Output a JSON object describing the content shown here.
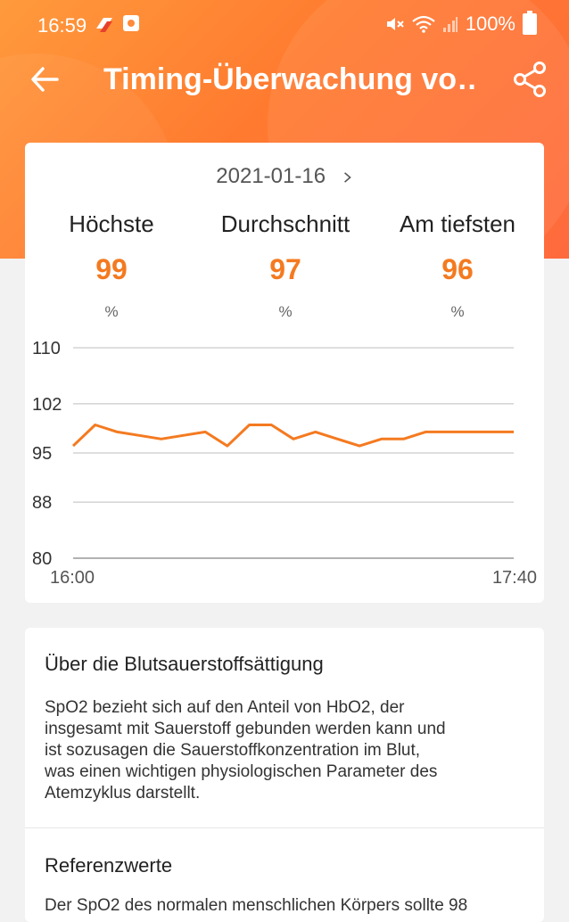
{
  "status_bar": {
    "time": "16:59",
    "battery": "100%",
    "icons": [
      "app-logo-icon",
      "app-notification-icon",
      "mute-icon",
      "wifi-icon",
      "signal-icon",
      "battery-icon"
    ]
  },
  "header": {
    "title": "Timing-Überwachung vo…"
  },
  "date": {
    "value": "2021-01-16"
  },
  "stats": [
    {
      "label": "Höchste",
      "value": "99",
      "unit": "%"
    },
    {
      "label": "Durchschnitt",
      "value": "97",
      "unit": "%"
    },
    {
      "label": "Am tiefsten",
      "value": "96",
      "unit": "%"
    }
  ],
  "colors": {
    "accent": "#f47a20",
    "header_gradient_start": "#ff9a3c",
    "header_gradient_end": "#ff6a3d",
    "grid": "#bdbdbd"
  },
  "chart_data": {
    "type": "line",
    "title": "",
    "xlabel": "",
    "ylabel": "",
    "x_tick_labels": [
      "16:00",
      "17:40"
    ],
    "y_ticks": [
      110,
      102,
      95,
      88,
      80
    ],
    "ylim": [
      80,
      110
    ],
    "grid": true,
    "series": [
      {
        "name": "",
        "values": [
          96,
          99,
          98,
          97.5,
          97,
          97.5,
          98,
          96,
          99,
          99,
          97,
          98,
          97,
          96,
          97,
          97,
          98,
          98,
          98,
          98,
          98
        ]
      }
    ]
  },
  "about": {
    "title": "Über die Blutsauerstoffsättigung",
    "lines": [
      "SpO2 bezieht sich auf den Anteil von HbO2, der",
      "insgesamt mit Sauerstoff gebunden werden kann und",
      "ist sozusagen die Sauerstoffkonzentration im Blut,",
      "was einen wichtigen physiologischen Parameter des",
      "Atemzyklus darstellt."
    ]
  },
  "reference": {
    "title": "Referenzwerte",
    "text": "Der SpO2 des normalen menschlichen Körpers sollte 98"
  }
}
